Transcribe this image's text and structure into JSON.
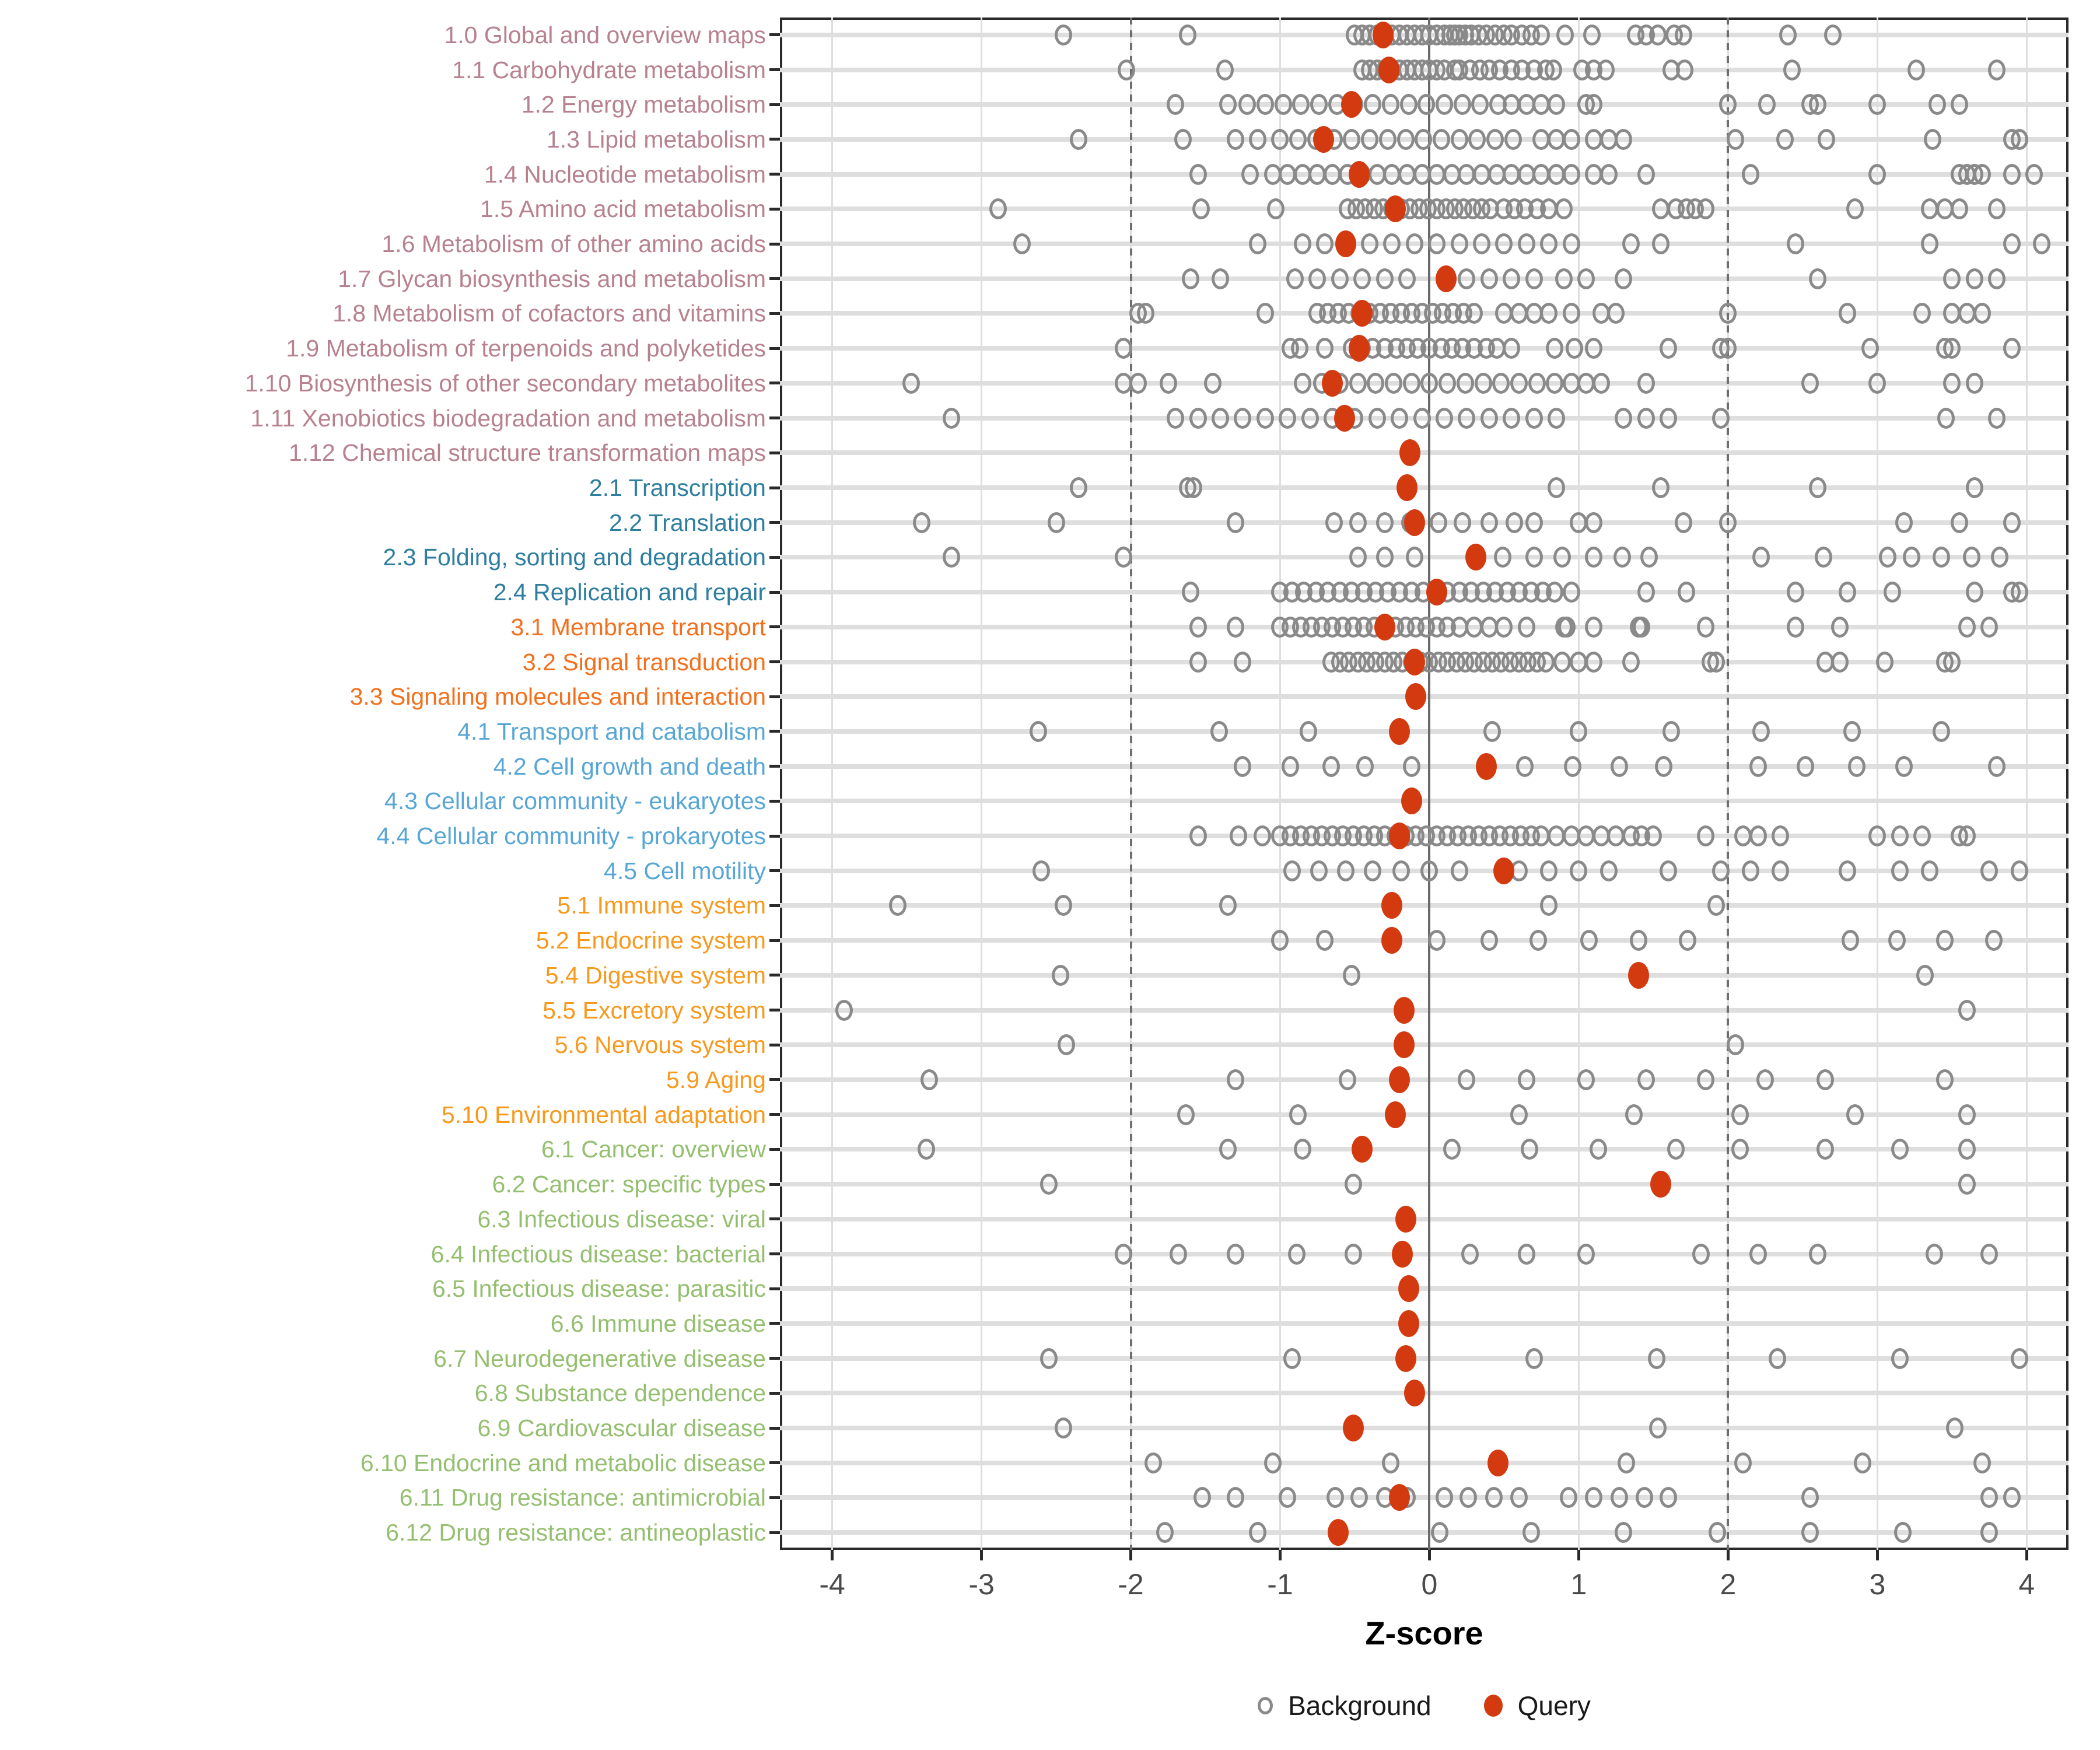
{
  "axis": {
    "xlabel": "Z-score",
    "ticks": [
      -4,
      -3,
      -2,
      -1,
      0,
      1,
      2,
      3,
      4
    ],
    "zero_line": 0,
    "dashed_lines": [
      -2,
      2
    ]
  },
  "legend": {
    "background_label": "Background",
    "query_label": "Query"
  },
  "colors": {
    "background_point": "#8a8a8a",
    "query_point": "#d33a10",
    "grid": "#dedede",
    "ref_line": "#6a6a6a",
    "axis_text": "#4a4a4a",
    "groups": {
      "1": "#b7818f",
      "2": "#2e7e9e",
      "3": "#f2701d",
      "4": "#58a6d5",
      "5": "#f7991d",
      "6": "#95bf70"
    }
  },
  "chart_data": {
    "type": "scatter",
    "xlabel": "Z-score",
    "xlim": [
      -4.35,
      4.28
    ],
    "grid": true,
    "legend_position": "bottom",
    "series_legend": [
      "Background",
      "Query"
    ],
    "rows": [
      {
        "label": "1.0 Global and overview maps",
        "group": "1",
        "query": -0.31,
        "background": [
          -2.45,
          -1.62,
          -0.5,
          -0.45,
          -0.4,
          -0.35,
          -0.3,
          -0.25,
          -0.2,
          -0.15,
          -0.1,
          -0.05,
          0,
          0.05,
          0.1,
          0.14,
          0.17,
          0.2,
          0.24,
          0.28,
          0.33,
          0.38,
          0.44,
          0.5,
          0.55,
          0.62,
          0.68,
          0.75,
          0.91,
          1.09,
          1.38,
          1.45,
          1.53,
          1.64,
          1.7,
          2.4,
          2.7
        ]
      },
      {
        "label": "1.1 Carbohydrate metabolism",
        "group": "1",
        "query": -0.27,
        "background": [
          -2.03,
          -1.37,
          -0.45,
          -0.4,
          -0.35,
          -0.3,
          -0.25,
          -0.2,
          -0.15,
          -0.1,
          -0.05,
          0,
          0.05,
          0.1,
          0.17,
          0.2,
          0.27,
          0.34,
          0.4,
          0.47,
          0.55,
          0.62,
          0.7,
          0.78,
          0.83,
          1.02,
          1.1,
          1.18,
          1.62,
          1.71,
          2.43,
          3.26,
          3.8
        ]
      },
      {
        "label": "1.2 Energy metabolism",
        "group": "1",
        "query": -0.52,
        "background": [
          -1.7,
          -1.35,
          -1.22,
          -1.1,
          -0.98,
          -0.86,
          -0.74,
          -0.62,
          -0.5,
          -0.38,
          -0.26,
          -0.14,
          -0.02,
          0.1,
          0.22,
          0.34,
          0.46,
          0.55,
          0.65,
          0.75,
          0.85,
          1.05,
          1.1,
          2.0,
          2.26,
          2.55,
          2.6,
          3.0,
          3.4,
          3.55
        ]
      },
      {
        "label": "1.3 Lipid metabolism",
        "group": "1",
        "query": -0.71,
        "background": [
          -2.35,
          -1.65,
          -1.3,
          -1.15,
          -1.0,
          -0.88,
          -0.76,
          -0.64,
          -0.52,
          -0.4,
          -0.28,
          -0.16,
          -0.04,
          0.08,
          0.2,
          0.32,
          0.44,
          0.56,
          0.75,
          0.85,
          0.95,
          1.1,
          1.2,
          1.3,
          2.05,
          2.38,
          2.66,
          3.37,
          3.9,
          3.95
        ]
      },
      {
        "label": "1.4 Nucleotide metabolism",
        "group": "1",
        "query": -0.47,
        "background": [
          -1.55,
          -1.2,
          -1.05,
          -0.95,
          -0.85,
          -0.75,
          -0.65,
          -0.55,
          -0.45,
          -0.35,
          -0.25,
          -0.15,
          -0.05,
          0.05,
          0.15,
          0.25,
          0.35,
          0.45,
          0.55,
          0.65,
          0.75,
          0.85,
          0.95,
          1.1,
          1.2,
          1.45,
          2.15,
          3.0,
          3.55,
          3.6,
          3.65,
          3.7,
          3.9,
          4.05
        ]
      },
      {
        "label": "1.5 Amino acid metabolism",
        "group": "1",
        "query": -0.23,
        "background": [
          -2.89,
          -1.53,
          -1.03,
          -0.55,
          -0.49,
          -0.43,
          -0.37,
          -0.31,
          -0.25,
          -0.19,
          -0.13,
          -0.07,
          -0.01,
          0.05,
          0.11,
          0.17,
          0.23,
          0.29,
          0.35,
          0.41,
          0.5,
          0.57,
          0.64,
          0.72,
          0.8,
          0.9,
          1.55,
          1.65,
          1.72,
          1.78,
          1.85,
          2.85,
          3.35,
          3.45,
          3.55,
          3.8
        ]
      },
      {
        "label": "1.6 Metabolism of other amino acids",
        "group": "1",
        "query": -0.56,
        "background": [
          -2.73,
          -1.15,
          -0.85,
          -0.7,
          -0.55,
          -0.4,
          -0.25,
          -0.1,
          0.05,
          0.2,
          0.35,
          0.5,
          0.65,
          0.8,
          0.95,
          1.35,
          1.55,
          2.45,
          3.35,
          3.9,
          4.1
        ]
      },
      {
        "label": "1.7 Glycan biosynthesis and metabolism",
        "group": "1",
        "query": 0.11,
        "background": [
          -1.6,
          -1.4,
          -0.9,
          -0.75,
          -0.6,
          -0.45,
          -0.3,
          -0.15,
          0.25,
          0.4,
          0.55,
          0.7,
          0.9,
          1.05,
          1.3,
          2.6,
          3.5,
          3.65,
          3.8
        ]
      },
      {
        "label": "1.8 Metabolism of cofactors and vitamins",
        "group": "1",
        "query": -0.45,
        "background": [
          -1.95,
          -1.9,
          -1.1,
          -0.75,
          -0.68,
          -0.61,
          -0.54,
          -0.47,
          -0.4,
          -0.33,
          -0.26,
          -0.19,
          -0.12,
          -0.05,
          0.02,
          0.09,
          0.16,
          0.23,
          0.3,
          0.5,
          0.6,
          0.7,
          0.8,
          0.95,
          1.15,
          1.25,
          2.0,
          2.8,
          3.3,
          3.5,
          3.6,
          3.7
        ]
      },
      {
        "label": "1.9 Metabolism of terpenoids and polyketides",
        "group": "1",
        "query": -0.47,
        "background": [
          -2.05,
          -0.93,
          -0.87,
          -0.7,
          -0.52,
          -0.45,
          -0.38,
          -0.3,
          -0.22,
          -0.15,
          -0.08,
          0.0,
          0.08,
          0.15,
          0.22,
          0.3,
          0.38,
          0.45,
          0.55,
          0.84,
          0.97,
          1.1,
          1.6,
          1.95,
          2.0,
          2.95,
          3.45,
          3.5,
          3.9
        ]
      },
      {
        "label": "1.10 Biosynthesis of other secondary metabolites",
        "group": "1",
        "query": -0.65,
        "background": [
          -3.47,
          -2.05,
          -1.95,
          -1.75,
          -1.45,
          -0.85,
          -0.72,
          -0.6,
          -0.48,
          -0.36,
          -0.24,
          -0.12,
          0.0,
          0.12,
          0.24,
          0.36,
          0.48,
          0.6,
          0.72,
          0.84,
          0.95,
          1.05,
          1.15,
          1.45,
          2.55,
          3.0,
          3.5,
          3.65
        ]
      },
      {
        "label": "1.11 Xenobiotics biodegradation and metabolism",
        "group": "1",
        "query": -0.57,
        "background": [
          -3.2,
          -1.7,
          -1.55,
          -1.4,
          -1.25,
          -1.1,
          -0.95,
          -0.8,
          -0.65,
          -0.5,
          -0.35,
          -0.2,
          -0.05,
          0.1,
          0.25,
          0.4,
          0.55,
          0.7,
          0.85,
          1.3,
          1.45,
          1.6,
          1.95,
          3.46,
          3.8
        ]
      },
      {
        "label": "1.12 Chemical structure transformation maps",
        "group": "1",
        "query": -0.13,
        "background": []
      },
      {
        "label": "2.1 Transcription",
        "group": "2",
        "query": -0.15,
        "background": [
          -2.35,
          -1.62,
          -1.58,
          0.85,
          1.55,
          2.6,
          3.65
        ]
      },
      {
        "label": "2.2 Translation",
        "group": "2",
        "query": -0.1,
        "background": [
          -3.4,
          -2.5,
          -1.3,
          -0.64,
          -0.48,
          -0.3,
          -0.13,
          0.06,
          0.22,
          0.4,
          0.57,
          0.7,
          1.0,
          1.1,
          1.7,
          2.0,
          3.18,
          3.55,
          3.9
        ]
      },
      {
        "label": "2.3 Folding, sorting and degradation",
        "group": "2",
        "query": 0.31,
        "background": [
          -3.2,
          -2.05,
          -0.48,
          -0.3,
          -0.1,
          0.49,
          0.7,
          0.89,
          1.1,
          1.29,
          1.47,
          2.22,
          2.64,
          3.07,
          3.23,
          3.43,
          3.63,
          3.82
        ]
      },
      {
        "label": "2.4 Replication and repair",
        "group": "2",
        "query": 0.05,
        "background": [
          -1.6,
          -1.0,
          -0.92,
          -0.84,
          -0.76,
          -0.68,
          -0.6,
          -0.52,
          -0.44,
          -0.36,
          -0.28,
          -0.2,
          -0.12,
          -0.04,
          0.04,
          0.12,
          0.2,
          0.28,
          0.36,
          0.44,
          0.52,
          0.6,
          0.68,
          0.76,
          0.84,
          0.95,
          1.45,
          1.72,
          2.45,
          2.8,
          3.1,
          3.65,
          3.9,
          3.95
        ]
      },
      {
        "label": "3.1 Membrane transport",
        "group": "3",
        "query": -0.3,
        "background": [
          -1.55,
          -1.3,
          -1.0,
          -0.93,
          -0.86,
          -0.79,
          -0.72,
          -0.65,
          -0.58,
          -0.51,
          -0.44,
          -0.37,
          -0.3,
          -0.23,
          -0.16,
          -0.09,
          -0.02,
          0.05,
          0.12,
          0.2,
          0.3,
          0.4,
          0.5,
          0.65,
          0.9,
          0.92,
          1.1,
          1.4,
          1.42,
          1.85,
          2.45,
          2.75,
          3.6,
          3.75
        ]
      },
      {
        "label": "3.2 Signal transduction",
        "group": "3",
        "query": -0.1,
        "background": [
          -1.55,
          -1.25,
          -0.66,
          -0.6,
          -0.54,
          -0.48,
          -0.42,
          -0.36,
          -0.3,
          -0.24,
          -0.18,
          -0.12,
          -0.06,
          0.0,
          0.06,
          0.12,
          0.18,
          0.24,
          0.3,
          0.36,
          0.42,
          0.48,
          0.54,
          0.6,
          0.66,
          0.72,
          0.78,
          0.89,
          1.0,
          1.1,
          1.35,
          1.88,
          1.92,
          2.65,
          2.75,
          3.05,
          3.45,
          3.5
        ]
      },
      {
        "label": "3.3 Signaling molecules and interaction",
        "group": "3",
        "query": -0.09,
        "background": []
      },
      {
        "label": "4.1 Transport and catabolism",
        "group": "4",
        "query": -0.2,
        "background": [
          -2.62,
          -1.41,
          -0.81,
          0.42,
          1.0,
          1.62,
          2.22,
          2.83,
          3.43
        ]
      },
      {
        "label": "4.2 Cell growth and death",
        "group": "4",
        "query": 0.38,
        "background": [
          -1.25,
          -0.93,
          -0.66,
          -0.43,
          -0.12,
          0.64,
          0.96,
          1.27,
          1.57,
          2.2,
          2.52,
          2.86,
          3.18,
          3.8
        ]
      },
      {
        "label": "4.3 Cellular community - eukaryotes",
        "group": "4",
        "query": -0.12,
        "background": []
      },
      {
        "label": "4.4 Cellular community - prokaryotes",
        "group": "4",
        "query": -0.2,
        "background": [
          -1.55,
          -1.28,
          -1.12,
          -1.0,
          -0.93,
          -0.86,
          -0.79,
          -0.72,
          -0.65,
          -0.58,
          -0.51,
          -0.44,
          -0.37,
          -0.3,
          -0.23,
          -0.16,
          -0.09,
          -0.02,
          0.05,
          0.12,
          0.19,
          0.26,
          0.33,
          0.4,
          0.47,
          0.54,
          0.61,
          0.68,
          0.75,
          0.85,
          0.95,
          1.05,
          1.15,
          1.25,
          1.35,
          1.42,
          1.5,
          1.85,
          2.1,
          2.2,
          2.35,
          3.0,
          3.15,
          3.3,
          3.55,
          3.6
        ]
      },
      {
        "label": "4.5 Cell motility",
        "group": "4",
        "query": 0.5,
        "background": [
          -2.6,
          -0.92,
          -0.74,
          -0.56,
          -0.38,
          -0.19,
          0.0,
          0.2,
          0.6,
          0.8,
          1.0,
          1.2,
          1.6,
          1.95,
          2.15,
          2.35,
          2.8,
          3.15,
          3.35,
          3.75,
          3.95
        ]
      },
      {
        "label": "5.1 Immune system",
        "group": "5",
        "query": -0.25,
        "background": [
          -3.56,
          -2.45,
          -1.35,
          0.8,
          1.92
        ]
      },
      {
        "label": "5.2 Endocrine system",
        "group": "5",
        "query": -0.25,
        "background": [
          -1.0,
          -0.7,
          0.05,
          0.4,
          0.73,
          1.07,
          1.4,
          1.73,
          2.82,
          3.13,
          3.45,
          3.78
        ]
      },
      {
        "label": "5.4 Digestive system",
        "group": "5",
        "query": 1.4,
        "background": [
          -2.47,
          -0.52,
          3.32
        ]
      },
      {
        "label": "5.5 Excretory system",
        "group": "5",
        "query": -0.17,
        "background": [
          -3.92,
          3.6
        ]
      },
      {
        "label": "5.6 Nervous system",
        "group": "5",
        "query": -0.17,
        "background": [
          -2.43,
          2.05
        ]
      },
      {
        "label": "5.9 Aging",
        "group": "5",
        "query": -0.2,
        "background": [
          -3.35,
          -1.3,
          -0.55,
          0.25,
          0.65,
          1.05,
          1.45,
          1.85,
          2.25,
          2.65,
          3.45
        ]
      },
      {
        "label": "5.10 Environmental adaptation",
        "group": "5",
        "query": -0.23,
        "background": [
          -1.63,
          -0.88,
          0.6,
          1.37,
          2.08,
          2.85,
          3.6
        ]
      },
      {
        "label": "6.1 Cancer: overview",
        "group": "6",
        "query": -0.45,
        "background": [
          -3.37,
          -1.35,
          -0.85,
          0.15,
          0.67,
          1.13,
          1.65,
          2.08,
          2.65,
          3.15,
          3.6
        ]
      },
      {
        "label": "6.2 Cancer: specific types",
        "group": "6",
        "query": 1.55,
        "background": [
          -2.55,
          -0.51,
          3.6
        ]
      },
      {
        "label": "6.3 Infectious disease: viral",
        "group": "6",
        "query": -0.16,
        "background": []
      },
      {
        "label": "6.4 Infectious disease: bacterial",
        "group": "6",
        "query": -0.18,
        "background": [
          -2.05,
          -1.68,
          -1.3,
          -0.89,
          -0.51,
          0.27,
          0.65,
          1.05,
          1.82,
          2.2,
          2.6,
          3.38,
          3.75
        ]
      },
      {
        "label": "6.5 Infectious disease: parasitic",
        "group": "6",
        "query": -0.14,
        "background": []
      },
      {
        "label": "6.6 Immune disease",
        "group": "6",
        "query": -0.14,
        "background": []
      },
      {
        "label": "6.7 Neurodegenerative disease",
        "group": "6",
        "query": -0.16,
        "background": [
          -2.55,
          -0.92,
          0.7,
          1.52,
          2.33,
          3.15,
          3.95
        ]
      },
      {
        "label": "6.8 Substance dependence",
        "group": "6",
        "query": -0.1,
        "background": []
      },
      {
        "label": "6.9 Cardiovascular disease",
        "group": "6",
        "query": -0.51,
        "background": [
          -2.45,
          1.53,
          3.52
        ]
      },
      {
        "label": "6.10 Endocrine and metabolic disease",
        "group": "6",
        "query": 0.46,
        "background": [
          -1.85,
          -1.05,
          -0.26,
          1.32,
          2.1,
          2.9,
          3.7
        ]
      },
      {
        "label": "6.11 Drug resistance: antimicrobial",
        "group": "6",
        "query": -0.2,
        "background": [
          -1.52,
          -1.3,
          -0.95,
          -0.63,
          -0.47,
          -0.3,
          -0.15,
          0.1,
          0.26,
          0.43,
          0.6,
          0.93,
          1.1,
          1.27,
          1.44,
          1.6,
          2.55,
          3.75,
          3.9
        ]
      },
      {
        "label": "6.12 Drug resistance: antineoplastic",
        "group": "6",
        "query": -0.61,
        "background": [
          -1.77,
          -1.15,
          0.07,
          0.68,
          1.3,
          1.93,
          2.55,
          3.17,
          3.75
        ]
      }
    ]
  }
}
